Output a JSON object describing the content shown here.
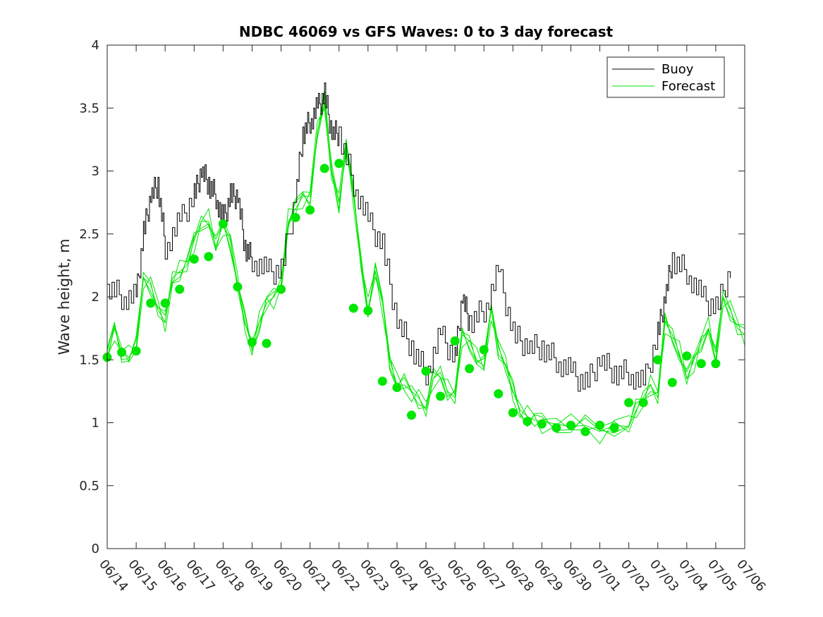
{
  "chart_data": {
    "type": "line",
    "title": "NDBC 46069 vs GFS Waves: 0 to 3 day forecast",
    "xlabel": "",
    "ylabel": "Wave height, m",
    "ylim": [
      0,
      4
    ],
    "yticks": [
      "0",
      "0.5",
      "1",
      "1.5",
      "2",
      "2.5",
      "3",
      "3.5",
      "4"
    ],
    "xlim": [
      "06/14",
      "07/06"
    ],
    "xticks": [
      "06/14",
      "06/15",
      "06/16",
      "06/17",
      "06/18",
      "06/19",
      "06/20",
      "06/21",
      "06/22",
      "06/23",
      "06/24",
      "06/25",
      "06/26",
      "06/27",
      "06/28",
      "06/29",
      "06/30",
      "07/01",
      "07/02",
      "07/03",
      "07/04",
      "07/05",
      "07/06"
    ],
    "grid": false,
    "legend": {
      "position": "top-right",
      "entries": [
        "Buoy",
        "Forecast"
      ]
    },
    "colors": {
      "buoy": "#000000",
      "forecast": "#00e600"
    },
    "series": [
      {
        "name": "Buoy",
        "x": [
          "06/14 00:00",
          "06/14 12:00",
          "06/15 00:00",
          "06/15 06:00",
          "06/15 12:00",
          "06/15 18:00",
          "06/16 00:00",
          "06/16 12:00",
          "06/17 00:00",
          "06/17 06:00",
          "06/17 12:00",
          "06/17 18:00",
          "06/18 00:00",
          "06/18 06:00",
          "06/18 12:00",
          "06/18 18:00",
          "06/19 00:00",
          "06/19 12:00",
          "06/20 00:00",
          "06/20 12:00",
          "06/20 18:00",
          "06/21 00:00",
          "06/21 06:00",
          "06/21 12:00",
          "06/21 18:00",
          "06/22 00:00",
          "06/22 12:00",
          "06/23 00:00",
          "06/23 12:00",
          "06/24 00:00",
          "06/24 12:00",
          "06/25 00:00",
          "06/25 12:00",
          "06/26 00:00",
          "06/26 06:00",
          "06/26 12:00",
          "06/27 00:00",
          "06/27 12:00",
          "06/28 00:00",
          "06/28 12:00",
          "06/29 00:00",
          "06/29 12:00",
          "06/30 00:00",
          "06/30 12:00",
          "07/01 00:00",
          "07/01 12:00",
          "07/02 00:00",
          "07/02 12:00",
          "07/03 00:00",
          "07/03 06:00",
          "07/03 12:00",
          "07/04 00:00",
          "07/04 12:00",
          "07/05 00:00",
          "07/05 12:00"
        ],
        "values": [
          2.1,
          2.0,
          2.0,
          2.5,
          2.8,
          2.9,
          2.4,
          2.6,
          2.8,
          3.0,
          2.9,
          2.8,
          2.6,
          2.8,
          2.8,
          2.4,
          2.3,
          2.2,
          2.2,
          2.8,
          3.3,
          3.4,
          3.5,
          3.6,
          3.3,
          3.3,
          2.9,
          2.6,
          2.4,
          1.8,
          1.6,
          1.4,
          1.7,
          1.5,
          2.0,
          1.8,
          1.9,
          2.2,
          1.7,
          1.6,
          1.6,
          1.5,
          1.4,
          1.3,
          1.5,
          1.4,
          1.4,
          1.3,
          1.7,
          2.0,
          2.3,
          2.2,
          2.0,
          1.9,
          2.2
        ]
      },
      {
        "name": "Forecast",
        "x": [
          "06/14 00:00",
          "06/14 06:00",
          "06/14 12:00",
          "06/14 18:00",
          "06/15 00:00",
          "06/15 06:00",
          "06/15 12:00",
          "06/15 18:00",
          "06/16 00:00",
          "06/16 06:00",
          "06/16 12:00",
          "06/16 18:00",
          "06/17 00:00",
          "06/17 06:00",
          "06/17 12:00",
          "06/17 18:00",
          "06/18 00:00",
          "06/18 06:00",
          "06/18 12:00",
          "06/18 18:00",
          "06/19 00:00",
          "06/19 06:00",
          "06/19 12:00",
          "06/19 18:00",
          "06/20 00:00",
          "06/20 06:00",
          "06/20 12:00",
          "06/20 18:00",
          "06/21 00:00",
          "06/21 06:00",
          "06/21 12:00",
          "06/21 18:00",
          "06/22 00:00",
          "06/22 06:00",
          "06/22 12:00",
          "06/22 18:00",
          "06/23 00:00",
          "06/23 06:00",
          "06/23 12:00",
          "06/23 18:00",
          "06/24 00:00",
          "06/24 06:00",
          "06/24 12:00",
          "06/24 18:00",
          "06/25 00:00",
          "06/25 06:00",
          "06/25 12:00",
          "06/25 18:00",
          "06/26 00:00",
          "06/26 06:00",
          "06/26 12:00",
          "06/26 18:00",
          "06/27 00:00",
          "06/27 06:00",
          "06/27 12:00",
          "06/27 18:00",
          "06/28 00:00",
          "06/28 06:00",
          "06/28 12:00",
          "06/28 18:00",
          "06/29 00:00",
          "06/29 12:00",
          "06/30 00:00",
          "06/30 12:00",
          "07/01 00:00",
          "07/01 12:00",
          "07/02 00:00",
          "07/02 06:00",
          "07/02 12:00",
          "07/02 18:00",
          "07/03 00:00",
          "07/03 06:00",
          "07/03 12:00",
          "07/03 18:00",
          "07/04 00:00",
          "07/04 06:00",
          "07/04 12:00",
          "07/04 18:00",
          "07/05 00:00",
          "07/05 06:00",
          "07/05 12:00",
          "07/05 18:00",
          "07/06 00:00"
        ],
        "values": [
          1.52,
          1.75,
          1.56,
          1.52,
          1.6,
          2.15,
          2.1,
          1.9,
          1.8,
          2.15,
          2.2,
          2.25,
          2.45,
          2.6,
          2.6,
          2.4,
          2.58,
          2.45,
          2.1,
          1.8,
          1.6,
          1.8,
          1.95,
          2.0,
          2.1,
          2.6,
          2.7,
          2.8,
          2.8,
          3.3,
          3.55,
          3.0,
          2.75,
          3.2,
          2.8,
          2.3,
          1.9,
          2.2,
          1.95,
          1.5,
          1.3,
          1.3,
          1.25,
          1.2,
          1.1,
          1.35,
          1.4,
          1.25,
          1.2,
          1.7,
          1.65,
          1.5,
          1.45,
          1.9,
          1.6,
          1.45,
          1.25,
          1.1,
          1.05,
          1.02,
          1.01,
          0.99,
          0.97,
          0.98,
          0.93,
          0.98,
          0.97,
          1.1,
          1.2,
          1.3,
          1.2,
          1.8,
          1.7,
          1.55,
          1.35,
          1.5,
          1.65,
          1.75,
          1.5,
          2.0,
          1.9,
          1.75,
          1.7
        ]
      },
      {
        "name": "",
        "type": "scatter",
        "x": [
          "06/14 00:00",
          "06/14 12:00",
          "06/15 00:00",
          "06/15 12:00",
          "06/16 00:00",
          "06/16 12:00",
          "06/17 00:00",
          "06/17 12:00",
          "06/18 00:00",
          "06/18 12:00",
          "06/19 00:00",
          "06/19 12:00",
          "06/20 00:00",
          "06/20 12:00",
          "06/21 00:00",
          "06/21 12:00",
          "06/22 00:00",
          "06/22 12:00",
          "06/23 00:00",
          "06/23 12:00",
          "06/24 00:00",
          "06/24 12:00",
          "06/25 00:00",
          "06/25 12:00",
          "06/26 00:00",
          "06/26 12:00",
          "06/27 00:00",
          "06/27 12:00",
          "06/28 00:00",
          "06/28 12:00",
          "06/29 00:00",
          "06/29 12:00",
          "06/30 00:00",
          "06/30 12:00",
          "07/01 00:00",
          "07/01 12:00",
          "07/02 00:00",
          "07/02 12:00",
          "07/03 00:00",
          "07/03 12:00",
          "07/04 00:00",
          "07/04 12:00",
          "07/05 00:00"
        ],
        "values": [
          1.52,
          1.56,
          1.57,
          1.95,
          1.95,
          2.06,
          2.3,
          2.32,
          2.58,
          2.08,
          1.64,
          1.63,
          2.06,
          2.63,
          2.69,
          3.02,
          3.06,
          1.91,
          1.89,
          1.33,
          1.28,
          1.06,
          1.41,
          1.21,
          1.65,
          1.43,
          1.58,
          1.23,
          1.08,
          1.01,
          0.99,
          0.96,
          0.98,
          0.93,
          0.98,
          0.96,
          1.16,
          1.16,
          1.5,
          1.32,
          1.53,
          1.47,
          1.47
        ]
      }
    ]
  }
}
